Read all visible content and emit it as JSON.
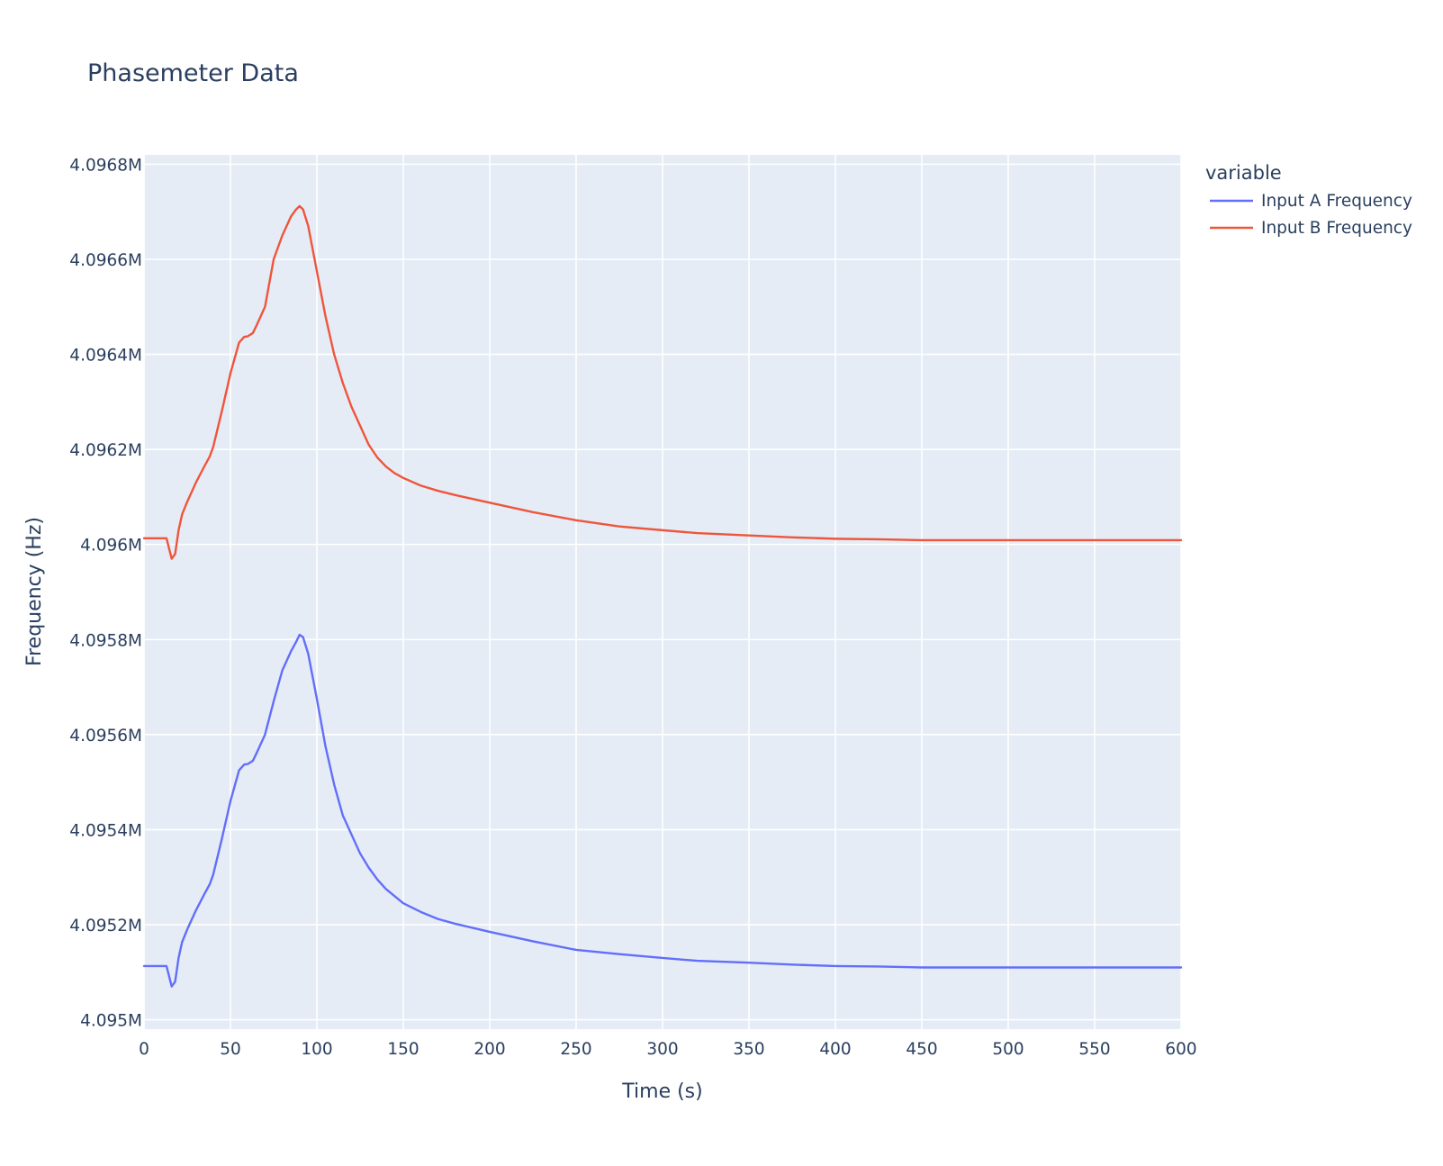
{
  "chart_data": {
    "type": "line",
    "title": "Phasemeter Data",
    "xlabel": "Time (s)",
    "ylabel": "Frequency (Hz)",
    "xlim": [
      0,
      600
    ],
    "ylim": [
      4095000,
      4096800
    ],
    "x_ticks": [
      0,
      50,
      100,
      150,
      200,
      250,
      300,
      350,
      400,
      450,
      500,
      550,
      600
    ],
    "x_tick_labels": [
      "0",
      "50",
      "100",
      "150",
      "200",
      "250",
      "300",
      "350",
      "400",
      "450",
      "500",
      "550",
      "600"
    ],
    "y_ticks": [
      4095000,
      4095200,
      4095400,
      4095600,
      4095800,
      4096000,
      4096200,
      4096400,
      4096600,
      4096800
    ],
    "y_tick_labels": [
      "4.095M",
      "4.0952M",
      "4.0954M",
      "4.0956M",
      "4.0958M",
      "4.096M",
      "4.0962M",
      "4.0964M",
      "4.0966M",
      "4.0968M"
    ],
    "grid": true,
    "plot_background": "#e5ecf6",
    "legend_title": "variable",
    "legend_position": "right-top",
    "series": [
      {
        "name": "Input A Frequency",
        "color": "#636efa",
        "x": [
          0,
          5,
          10,
          13,
          16,
          18,
          20,
          22,
          25,
          30,
          35,
          38,
          40,
          45,
          50,
          55,
          58,
          60,
          63,
          65,
          70,
          75,
          80,
          85,
          88,
          90,
          92,
          95,
          100,
          105,
          110,
          115,
          120,
          125,
          130,
          135,
          140,
          145,
          150,
          160,
          170,
          180,
          200,
          225,
          250,
          275,
          300,
          320,
          350,
          375,
          400,
          425,
          450,
          500,
          550,
          600
        ],
        "y": [
          4095113,
          4095113,
          4095113,
          4095113,
          4095070,
          4095080,
          4095130,
          4095163,
          4095190,
          4095230,
          4095265,
          4095285,
          4095305,
          4095380,
          4095460,
          4095525,
          4095537,
          4095538,
          4095545,
          4095560,
          4095600,
          4095670,
          4095735,
          4095775,
          4095795,
          4095810,
          4095805,
          4095770,
          4095675,
          4095575,
          4095495,
          4095430,
          4095390,
          4095350,
          4095320,
          4095295,
          4095275,
          4095260,
          4095245,
          4095227,
          4095212,
          4095202,
          4095185,
          4095165,
          4095147,
          4095138,
          4095130,
          4095124,
          4095120,
          4095116,
          4095113,
          4095112,
          4095110,
          4095110,
          4095110,
          4095110
        ]
      },
      {
        "name": "Input B Frequency",
        "color": "#ef553b",
        "x": [
          0,
          5,
          10,
          13,
          16,
          18,
          20,
          22,
          25,
          30,
          35,
          38,
          40,
          45,
          50,
          55,
          58,
          60,
          63,
          65,
          70,
          75,
          80,
          85,
          88,
          90,
          92,
          95,
          100,
          105,
          110,
          115,
          120,
          125,
          130,
          135,
          140,
          145,
          150,
          160,
          170,
          180,
          200,
          225,
          250,
          275,
          300,
          320,
          350,
          375,
          400,
          425,
          450,
          500,
          550,
          600
        ],
        "y": [
          4096013,
          4096013,
          4096013,
          4096013,
          4095970,
          4095980,
          4096030,
          4096063,
          4096090,
          4096130,
          4096165,
          4096185,
          4096205,
          4096280,
          4096360,
          4096425,
          4096437,
          4096438,
          4096445,
          4096460,
          4096500,
          4096600,
          4096650,
          4096690,
          4096705,
          4096712,
          4096705,
          4096670,
          4096575,
          4096480,
          4096400,
          4096340,
          4096290,
          4096250,
          4096210,
          4096183,
          4096164,
          4096150,
          4096140,
          4096124,
          4096113,
          4096104,
          4096088,
          4096068,
          4096051,
          4096038,
          4096030,
          4096024,
          4096019,
          4096015,
          4096012,
          4096011,
          4096009,
          4096009,
          4096009,
          4096009
        ]
      }
    ]
  }
}
